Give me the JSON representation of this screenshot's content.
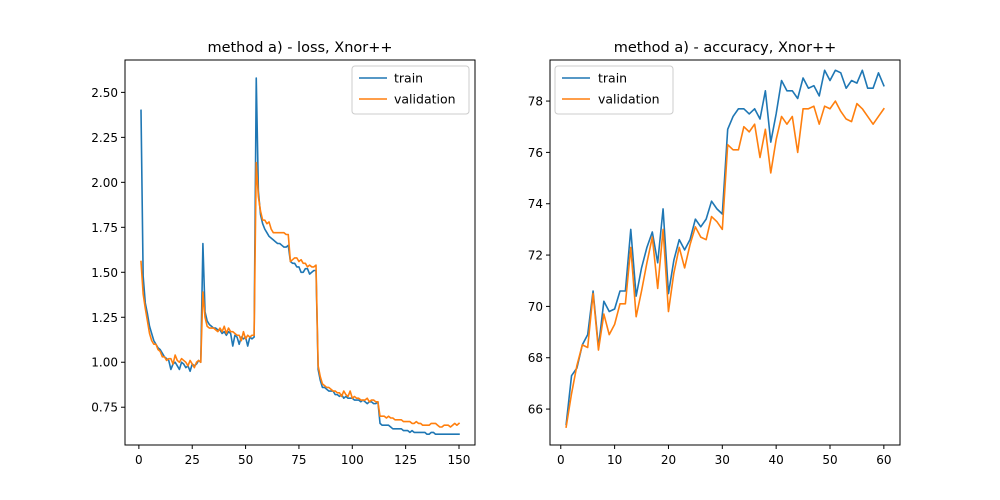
{
  "chart_data": [
    {
      "type": "line",
      "title": "method a) - loss, Xnor++",
      "xlabel": "",
      "ylabel": "",
      "xlim": [
        -6.5,
        157.5
      ],
      "ylim": [
        0.54,
        2.68
      ],
      "xticks": [
        0,
        25,
        50,
        75,
        100,
        125,
        150
      ],
      "yticks": [
        0.75,
        1.0,
        1.25,
        1.5,
        1.75,
        2.0,
        2.25,
        2.5
      ],
      "ytick_labels": [
        "0.75",
        "1.00",
        "1.25",
        "1.50",
        "1.75",
        "2.00",
        "2.25",
        "2.50"
      ],
      "legend_position": "upper-right",
      "grid": false,
      "x": [
        1,
        2,
        3,
        4,
        5,
        6,
        7,
        8,
        9,
        10,
        11,
        12,
        13,
        14,
        15,
        16,
        17,
        18,
        19,
        20,
        21,
        22,
        23,
        24,
        25,
        26,
        27,
        28,
        29,
        30,
        31,
        32,
        33,
        34,
        35,
        36,
        37,
        38,
        39,
        40,
        41,
        42,
        43,
        44,
        45,
        46,
        47,
        48,
        49,
        50,
        51,
        52,
        53,
        54,
        55,
        56,
        57,
        58,
        59,
        60,
        61,
        62,
        63,
        64,
        65,
        66,
        67,
        68,
        69,
        70,
        71,
        72,
        73,
        74,
        75,
        76,
        77,
        78,
        79,
        80,
        81,
        82,
        83,
        84,
        85,
        86,
        87,
        88,
        89,
        90,
        91,
        92,
        93,
        94,
        95,
        96,
        97,
        98,
        99,
        100,
        101,
        102,
        103,
        104,
        105,
        106,
        107,
        108,
        109,
        110,
        111,
        112,
        113,
        114,
        115,
        116,
        117,
        118,
        119,
        120,
        121,
        122,
        123,
        124,
        125,
        126,
        127,
        128,
        129,
        130,
        131,
        132,
        133,
        134,
        135,
        136,
        137,
        138,
        139,
        140,
        141,
        142,
        143,
        144,
        145,
        146,
        147,
        148,
        149,
        150
      ],
      "series": [
        {
          "name": "train",
          "color": "#1f77b4",
          "values": [
            2.4,
            1.48,
            1.33,
            1.27,
            1.2,
            1.16,
            1.12,
            1.1,
            1.08,
            1.07,
            1.05,
            1.03,
            1.02,
            1.01,
            0.96,
            0.99,
            1.0,
            0.98,
            0.96,
            1.0,
            0.99,
            0.97,
            0.98,
            0.95,
            0.99,
            0.98,
            0.99,
            1.01,
            1.0,
            1.66,
            1.28,
            1.23,
            1.21,
            1.2,
            1.19,
            1.19,
            1.18,
            1.18,
            1.16,
            1.17,
            1.15,
            1.17,
            1.16,
            1.09,
            1.15,
            1.14,
            1.1,
            1.14,
            1.13,
            1.14,
            1.09,
            1.14,
            1.13,
            1.14,
            2.58,
            1.95,
            1.82,
            1.77,
            1.74,
            1.72,
            1.7,
            1.69,
            1.68,
            1.67,
            1.66,
            1.66,
            1.65,
            1.64,
            1.64,
            1.65,
            1.56,
            1.55,
            1.55,
            1.53,
            1.53,
            1.5,
            1.5,
            1.52,
            1.52,
            1.49,
            1.5,
            1.51,
            1.51,
            0.96,
            0.9,
            0.86,
            0.86,
            0.85,
            0.84,
            0.84,
            0.84,
            0.82,
            0.82,
            0.81,
            0.82,
            0.8,
            0.81,
            0.8,
            0.8,
            0.8,
            0.79,
            0.79,
            0.79,
            0.78,
            0.79,
            0.78,
            0.77,
            0.78,
            0.78,
            0.77,
            0.77,
            0.78,
            0.66,
            0.65,
            0.65,
            0.65,
            0.65,
            0.64,
            0.63,
            0.63,
            0.63,
            0.63,
            0.63,
            0.62,
            0.62,
            0.62,
            0.61,
            0.62,
            0.61,
            0.61,
            0.61,
            0.61,
            0.61,
            0.61,
            0.6,
            0.6,
            0.61,
            0.61,
            0.6,
            0.6,
            0.6,
            0.6,
            0.6,
            0.6,
            0.6,
            0.6,
            0.6,
            0.6,
            0.6,
            0.6
          ]
        },
        {
          "name": "validation",
          "color": "#ff7f0e",
          "values": [
            1.56,
            1.38,
            1.3,
            1.23,
            1.16,
            1.12,
            1.1,
            1.1,
            1.07,
            1.06,
            1.03,
            1.03,
            1.01,
            1.02,
            1.02,
            0.99,
            1.04,
            1.01,
            1.0,
            1.02,
            1.01,
            1.0,
            0.98,
            1.01,
            0.99,
            0.97,
            1.0,
            1.01,
            1.0,
            1.39,
            1.25,
            1.2,
            1.19,
            1.19,
            1.19,
            1.18,
            1.17,
            1.19,
            1.17,
            1.2,
            1.16,
            1.19,
            1.17,
            1.17,
            1.16,
            1.15,
            1.15,
            1.12,
            1.17,
            1.13,
            1.15,
            1.14,
            1.15,
            1.15,
            2.11,
            1.92,
            1.84,
            1.79,
            1.79,
            1.77,
            1.78,
            1.74,
            1.72,
            1.72,
            1.72,
            1.72,
            1.72,
            1.72,
            1.71,
            1.71,
            1.56,
            1.57,
            1.58,
            1.58,
            1.56,
            1.57,
            1.55,
            1.55,
            1.53,
            1.54,
            1.53,
            1.53,
            1.54,
            0.98,
            0.92,
            0.88,
            0.87,
            0.86,
            0.86,
            0.85,
            0.84,
            0.84,
            0.83,
            0.83,
            0.81,
            0.84,
            0.82,
            0.81,
            0.84,
            0.8,
            0.81,
            0.8,
            0.8,
            0.79,
            0.79,
            0.79,
            0.8,
            0.78,
            0.79,
            0.79,
            0.78,
            0.78,
            0.7,
            0.7,
            0.7,
            0.69,
            0.7,
            0.69,
            0.69,
            0.68,
            0.68,
            0.68,
            0.68,
            0.67,
            0.67,
            0.67,
            0.67,
            0.66,
            0.66,
            0.67,
            0.66,
            0.66,
            0.65,
            0.65,
            0.65,
            0.65,
            0.66,
            0.66,
            0.66,
            0.65,
            0.64,
            0.64,
            0.65,
            0.65,
            0.65,
            0.64,
            0.65,
            0.66,
            0.65,
            0.66
          ]
        }
      ]
    },
    {
      "type": "line",
      "title": "method a) - accuracy, Xnor++",
      "xlabel": "",
      "ylabel": "",
      "xlim": [
        -2.0,
        63.0
      ],
      "ylim": [
        64.6,
        79.6
      ],
      "xticks": [
        0,
        10,
        20,
        30,
        40,
        50,
        60
      ],
      "yticks": [
        66,
        68,
        70,
        72,
        74,
        76,
        78
      ],
      "ytick_labels": [
        "66",
        "68",
        "70",
        "72",
        "74",
        "76",
        "78"
      ],
      "legend_position": "upper-left",
      "grid": false,
      "x": [
        1,
        2,
        3,
        4,
        5,
        6,
        7,
        8,
        9,
        10,
        11,
        12,
        13,
        14,
        15,
        16,
        17,
        18,
        19,
        20,
        21,
        22,
        23,
        24,
        25,
        26,
        27,
        28,
        29,
        30,
        31,
        32,
        33,
        34,
        35,
        36,
        37,
        38,
        39,
        40,
        41,
        42,
        43,
        44,
        45,
        46,
        47,
        48,
        49,
        50,
        51,
        52,
        53,
        54,
        55,
        56,
        57,
        58,
        59,
        60
      ],
      "series": [
        {
          "name": "train",
          "color": "#1f77b4",
          "values": [
            65.4,
            67.3,
            67.6,
            68.5,
            68.9,
            70.6,
            68.4,
            70.2,
            69.8,
            69.9,
            70.6,
            70.6,
            73.0,
            70.4,
            71.5,
            72.3,
            72.9,
            71.7,
            73.8,
            70.5,
            71.8,
            72.6,
            72.2,
            72.6,
            73.4,
            73.1,
            73.4,
            74.1,
            73.8,
            73.6,
            76.9,
            77.4,
            77.7,
            77.7,
            77.5,
            77.7,
            77.3,
            78.4,
            76.4,
            77.5,
            78.8,
            78.4,
            78.4,
            78.1,
            78.9,
            78.5,
            78.6,
            78.2,
            79.2,
            78.8,
            79.2,
            79.1,
            78.5,
            78.8,
            78.7,
            79.2,
            78.5,
            78.5,
            79.1,
            78.6
          ]
        },
        {
          "name": "validation",
          "color": "#ff7f0e",
          "values": [
            65.3,
            66.6,
            67.7,
            68.5,
            68.4,
            70.5,
            68.3,
            69.7,
            68.9,
            69.3,
            70.1,
            70.1,
            72.3,
            69.6,
            70.6,
            71.7,
            72.7,
            70.7,
            73.0,
            69.8,
            71.3,
            72.3,
            71.5,
            72.4,
            73.1,
            72.7,
            72.6,
            73.5,
            73.3,
            73.0,
            76.3,
            76.1,
            76.1,
            77.0,
            76.8,
            77.1,
            75.8,
            76.9,
            75.2,
            76.5,
            77.4,
            77.1,
            77.4,
            76.0,
            77.7,
            77.7,
            77.8,
            77.1,
            77.8,
            77.7,
            78.0,
            77.6,
            77.3,
            77.2,
            77.9,
            77.7,
            77.4,
            77.1,
            77.4,
            77.7
          ]
        }
      ]
    }
  ]
}
